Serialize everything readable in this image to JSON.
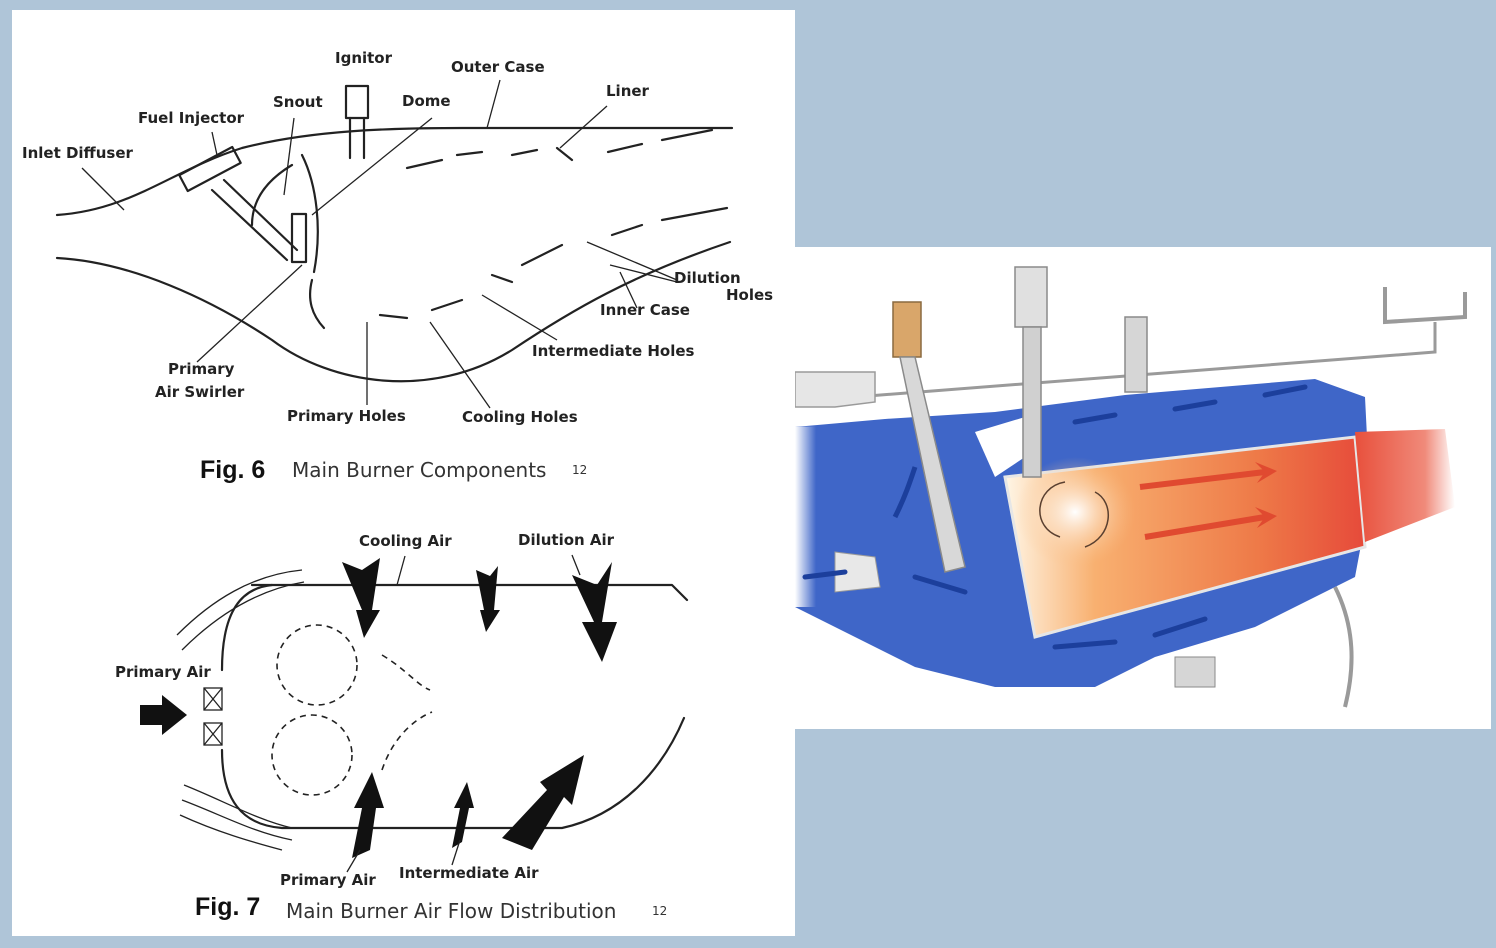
{
  "fig6": {
    "number": "Fig. 6",
    "title": "Main Burner Components",
    "ref": "12",
    "labels": {
      "ignitor": "Ignitor",
      "outer_case": "Outer Case",
      "liner": "Liner",
      "snout": "Snout",
      "dome": "Dome",
      "fuel_injector": "Fuel Injector",
      "inlet_diffuser": "Inlet Diffuser",
      "dilution_holes_1": "Dilution",
      "dilution_holes_2": "Holes",
      "inner_case": "Inner Case",
      "intermediate_holes": "Intermediate Holes",
      "primary_air_swirler_1": "Primary",
      "primary_air_swirler_2": "Air Swirler",
      "primary_holes": "Primary Holes",
      "cooling_holes": "Cooling Holes"
    }
  },
  "fig7": {
    "number": "Fig. 7",
    "title": "Main Burner Air Flow Distribution",
    "ref": "12",
    "labels": {
      "cooling_air": "Cooling Air",
      "dilution_air": "Dilution Air",
      "primary_air_left": "Primary Air",
      "primary_air_bottom": "Primary Air",
      "intermediate_air": "Intermediate Air"
    }
  },
  "colors": {
    "background": "#afc5d8",
    "panel": "#ffffff",
    "air_blue": "#3f66c8",
    "flame_orange": "#f08a4a",
    "flame_core": "#fff6e6",
    "hardware_gray": "#c9c9c9"
  }
}
